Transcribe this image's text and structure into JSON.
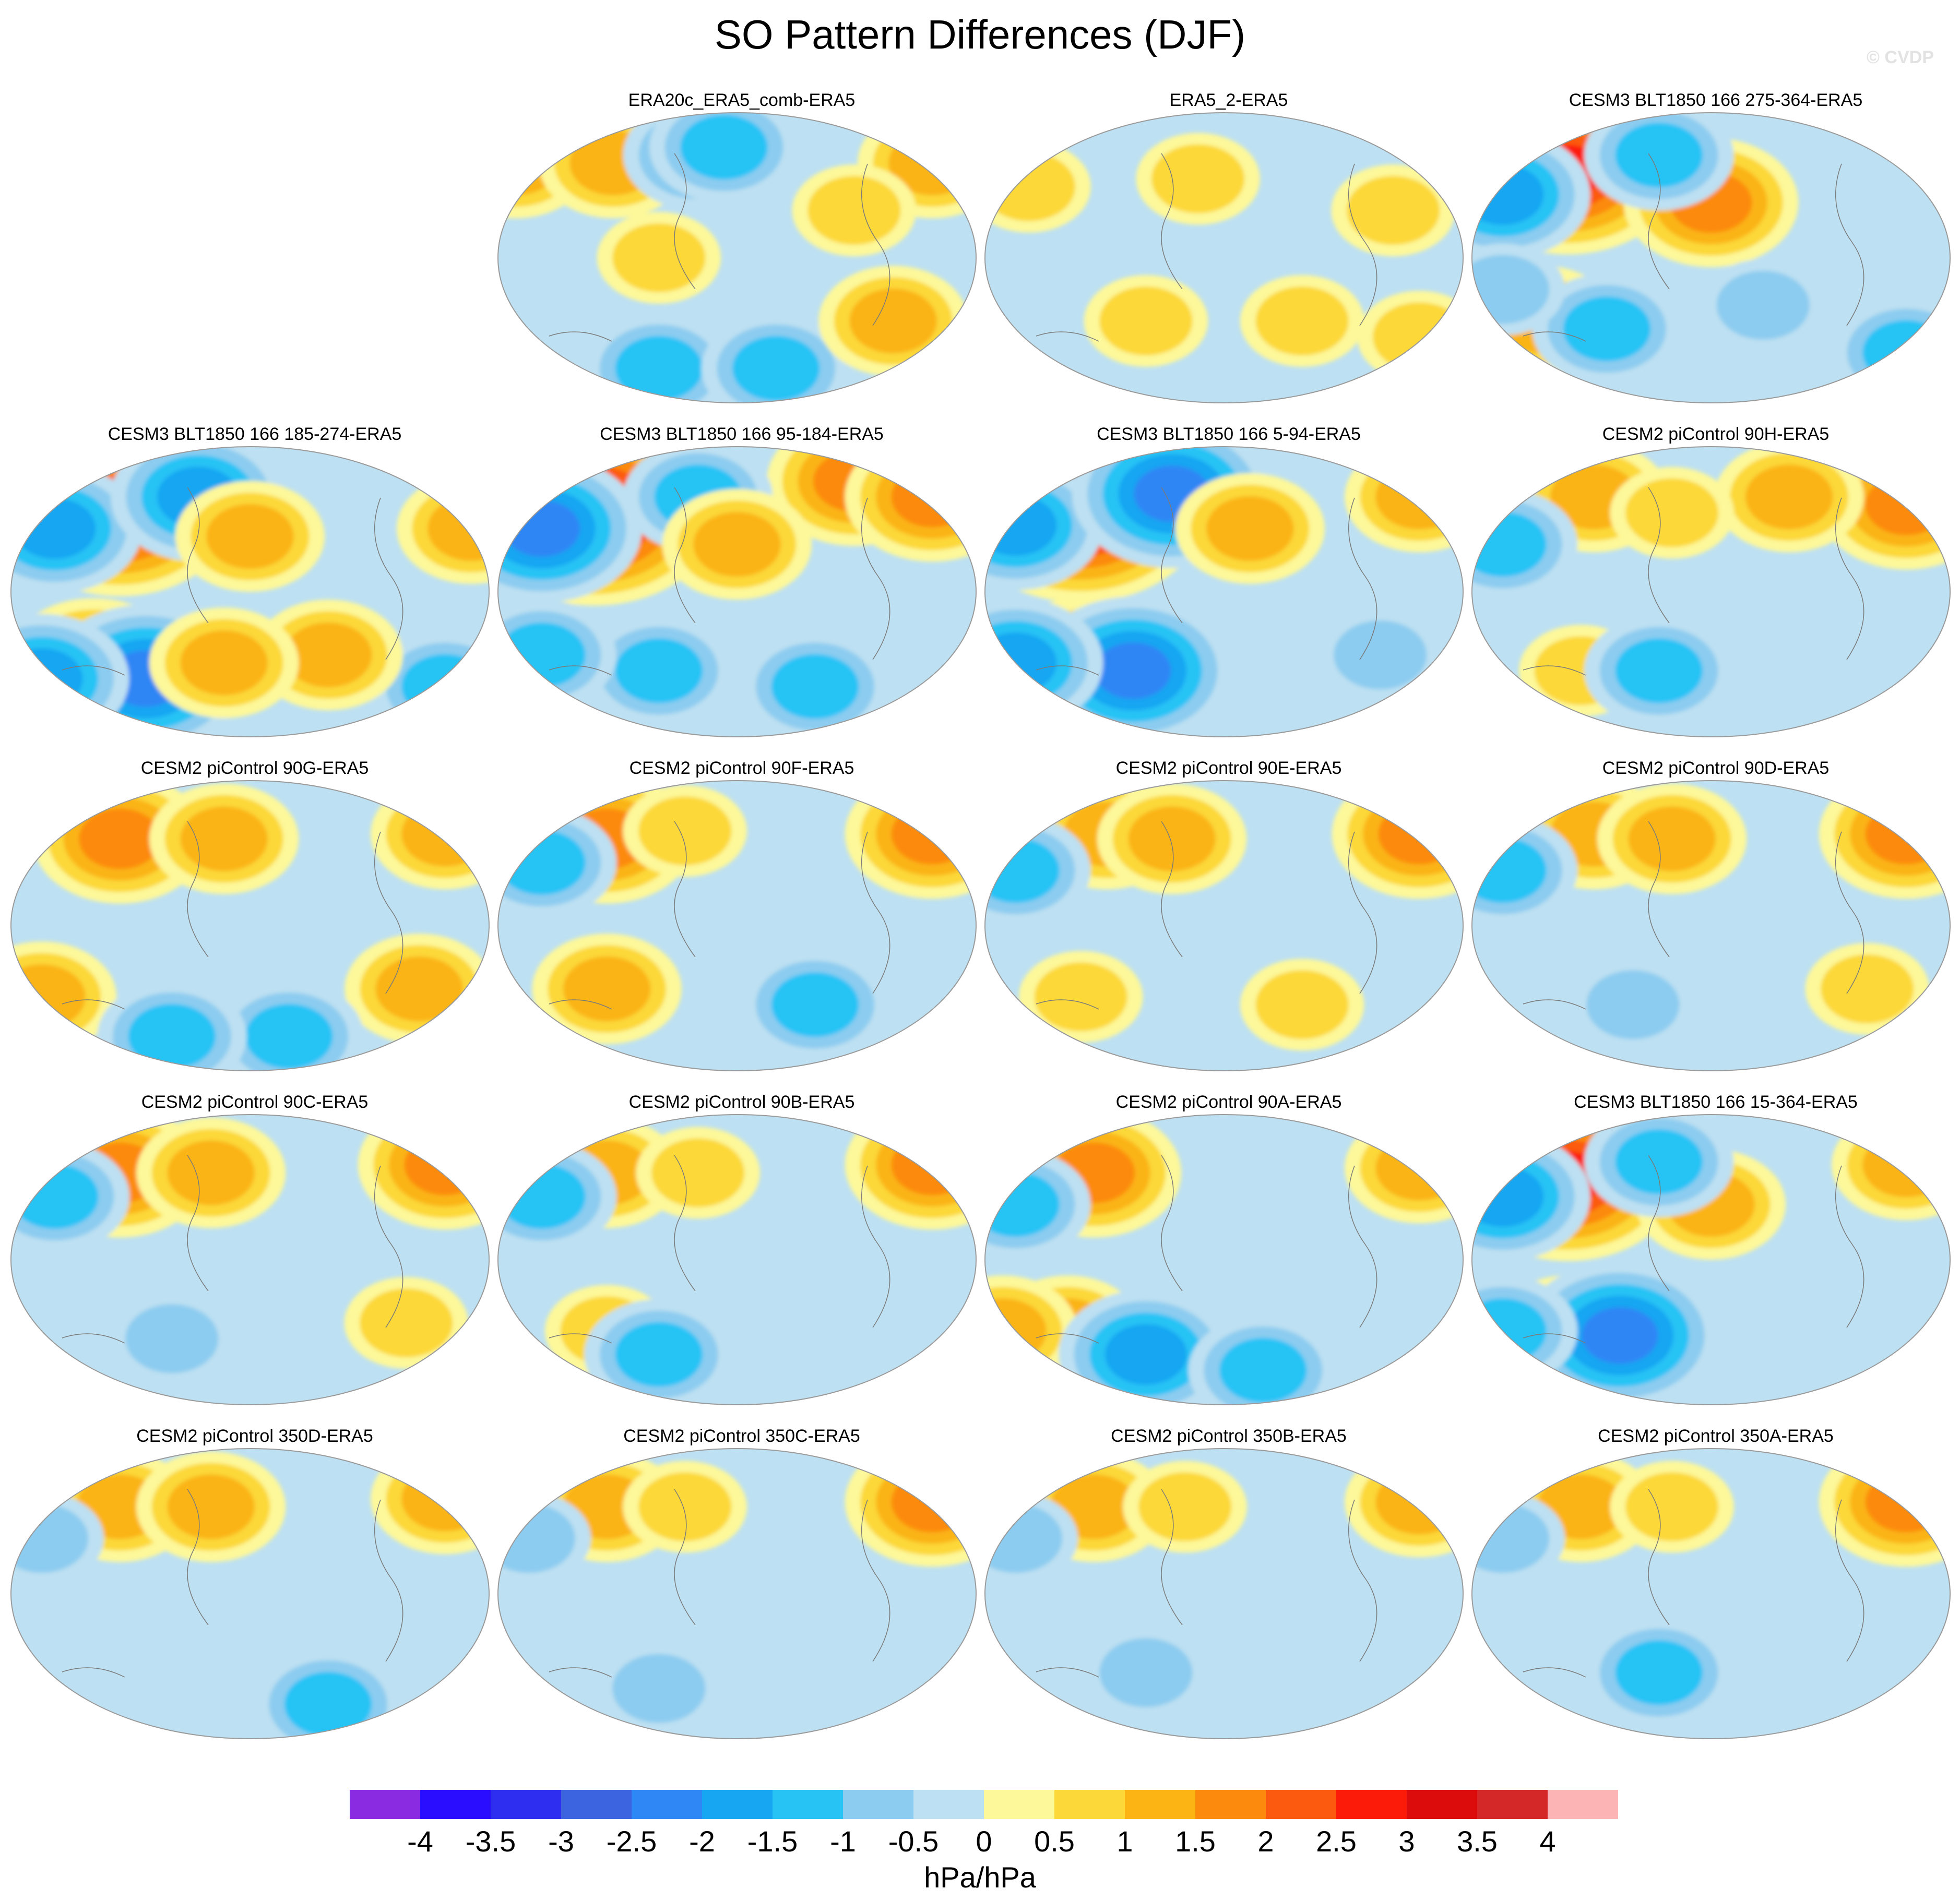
{
  "title": "SO Pattern Differences (DJF)",
  "watermark": "© CVDP",
  "chart_data": {
    "type": "heatmap",
    "projection": "global map (Robinson-like ellipse)",
    "panels": [
      {
        "row": 0,
        "col": 1,
        "title": "ERA20c_ERA5_comb-ERA5",
        "features": [
          {
            "lon": -170,
            "lat": 60,
            "level": 1
          },
          {
            "lon": 150,
            "lat": 60,
            "level": 1
          },
          {
            "lon": -95,
            "lat": 60,
            "level": 1
          },
          {
            "lon": -30,
            "lat": 65,
            "level": -1
          },
          {
            "lon": -10,
            "lat": 70,
            "level": -1
          },
          {
            "lon": -60,
            "lat": -70,
            "level": -1
          },
          {
            "lon": 30,
            "lat": -70,
            "level": -1
          },
          {
            "lon": 120,
            "lat": -40,
            "level": 1
          },
          {
            "lon": 90,
            "lat": 30,
            "level": 0.5
          },
          {
            "lon": -60,
            "lat": 0,
            "level": 0.5
          }
        ]
      },
      {
        "row": 0,
        "col": 2,
        "title": "ERA5_2-ERA5",
        "features": [
          {
            "lon": -150,
            "lat": 45,
            "level": 0.5
          },
          {
            "lon": -20,
            "lat": 50,
            "level": 0.5
          },
          {
            "lon": 130,
            "lat": 30,
            "level": 0.5
          },
          {
            "lon": 60,
            "lat": -40,
            "level": 0.5
          },
          {
            "lon": -60,
            "lat": -40,
            "level": 0.5
          },
          {
            "lon": 150,
            "lat": -50,
            "level": 0.5
          }
        ]
      },
      {
        "row": 0,
        "col": 3,
        "title": "CESM3 BLT1850 166 275-364-ERA5",
        "features": [
          {
            "lon": -110,
            "lat": 55,
            "level": 2.5
          },
          {
            "lon": -160,
            "lat": 40,
            "level": -1.5
          },
          {
            "lon": 0,
            "lat": 35,
            "level": 1.5
          },
          {
            "lon": -40,
            "lat": 65,
            "level": -1
          },
          {
            "lon": -130,
            "lat": -40,
            "level": 1
          },
          {
            "lon": -80,
            "lat": -45,
            "level": -1
          },
          {
            "lon": 150,
            "lat": -60,
            "level": -1
          },
          {
            "lon": -160,
            "lat": -20,
            "level": -0.5
          },
          {
            "lon": 40,
            "lat": -30,
            "level": -0.5
          }
        ]
      },
      {
        "row": 1,
        "col": 0,
        "title": "CESM3 BLT1850 166 185-274-ERA5",
        "features": [
          {
            "lon": -100,
            "lat": 50,
            "level": 2.5
          },
          {
            "lon": -150,
            "lat": 40,
            "level": -1.5
          },
          {
            "lon": -40,
            "lat": 60,
            "level": -1.5
          },
          {
            "lon": 0,
            "lat": 35,
            "level": 1
          },
          {
            "lon": -120,
            "lat": -45,
            "level": 1.5
          },
          {
            "lon": -80,
            "lat": -55,
            "level": -2
          },
          {
            "lon": -160,
            "lat": -55,
            "level": -1.5
          },
          {
            "lon": 150,
            "lat": -60,
            "level": -1
          },
          {
            "lon": 60,
            "lat": -40,
            "level": 1
          },
          {
            "lon": -20,
            "lat": -45,
            "level": 1
          },
          {
            "lon": 170,
            "lat": 40,
            "level": 1
          }
        ]
      },
      {
        "row": 1,
        "col": 1,
        "title": "CESM3 BLT1850 166 95-184-ERA5",
        "features": [
          {
            "lon": -110,
            "lat": 50,
            "level": 3
          },
          {
            "lon": -150,
            "lat": 40,
            "level": -2
          },
          {
            "lon": 90,
            "lat": 70,
            "level": 1.5
          },
          {
            "lon": 150,
            "lat": 60,
            "level": 1.5
          },
          {
            "lon": -30,
            "lat": 60,
            "level": -1
          },
          {
            "lon": 0,
            "lat": 30,
            "level": 1
          },
          {
            "lon": -60,
            "lat": -50,
            "level": -1
          },
          {
            "lon": -150,
            "lat": -40,
            "level": -1
          },
          {
            "lon": 60,
            "lat": -60,
            "level": -1
          }
        ]
      },
      {
        "row": 1,
        "col": 2,
        "title": "CESM3 BLT1850 166 5-94-ERA5",
        "features": [
          {
            "lon": -110,
            "lat": 52,
            "level": 3
          },
          {
            "lon": -160,
            "lat": 42,
            "level": -1.5
          },
          {
            "lon": -40,
            "lat": 62,
            "level": -2
          },
          {
            "lon": 20,
            "lat": 40,
            "level": 1
          },
          {
            "lon": 150,
            "lat": 60,
            "level": 1
          },
          {
            "lon": -110,
            "lat": -45,
            "level": 1.5
          },
          {
            "lon": -70,
            "lat": -50,
            "level": -2
          },
          {
            "lon": -160,
            "lat": -45,
            "level": -1.5
          },
          {
            "lon": 120,
            "lat": -40,
            "level": -0.5
          }
        ]
      },
      {
        "row": 1,
        "col": 3,
        "title": "CESM2 piControl 90H-ERA5",
        "features": [
          {
            "lon": 150,
            "lat": 55,
            "level": 1.5
          },
          {
            "lon": -90,
            "lat": 60,
            "level": 1
          },
          {
            "lon": 60,
            "lat": 60,
            "level": 1
          },
          {
            "lon": -160,
            "lat": 30,
            "level": -1
          },
          {
            "lon": -30,
            "lat": 50,
            "level": 0.5
          },
          {
            "lon": -100,
            "lat": -50,
            "level": 0.5
          },
          {
            "lon": -40,
            "lat": -50,
            "level": -1
          }
        ]
      },
      {
        "row": 2,
        "col": 0,
        "title": "CESM2 piControl 90G-ERA5",
        "features": [
          {
            "lon": 150,
            "lat": 58,
            "level": 1
          },
          {
            "lon": -100,
            "lat": 55,
            "level": 1.5
          },
          {
            "lon": -20,
            "lat": 55,
            "level": 1
          },
          {
            "lon": -160,
            "lat": -45,
            "level": 1
          },
          {
            "lon": 130,
            "lat": -40,
            "level": 1
          },
          {
            "lon": 30,
            "lat": -70,
            "level": -1
          },
          {
            "lon": -60,
            "lat": -70,
            "level": -1
          }
        ]
      },
      {
        "row": 2,
        "col": 1,
        "title": "CESM2 piControl 90F-ERA5",
        "features": [
          {
            "lon": 150,
            "lat": 58,
            "level": 1.5
          },
          {
            "lon": -100,
            "lat": 55,
            "level": 1.5
          },
          {
            "lon": -150,
            "lat": 40,
            "level": -1
          },
          {
            "lon": -40,
            "lat": 60,
            "level": 0.5
          },
          {
            "lon": -100,
            "lat": -40,
            "level": 1
          },
          {
            "lon": 60,
            "lat": -50,
            "level": -1
          }
        ]
      },
      {
        "row": 2,
        "col": 2,
        "title": "CESM2 piControl 90E-ERA5",
        "features": [
          {
            "lon": 150,
            "lat": 58,
            "level": 1.5
          },
          {
            "lon": -90,
            "lat": 58,
            "level": 1
          },
          {
            "lon": -40,
            "lat": 55,
            "level": 1
          },
          {
            "lon": -160,
            "lat": 35,
            "level": -1
          },
          {
            "lon": -110,
            "lat": -45,
            "level": 0.5
          },
          {
            "lon": 60,
            "lat": -50,
            "level": 0.5
          }
        ]
      },
      {
        "row": 2,
        "col": 3,
        "title": "CESM2 piControl 90D-ERA5",
        "features": [
          {
            "lon": 150,
            "lat": 58,
            "level": 1.5
          },
          {
            "lon": -90,
            "lat": 58,
            "level": 1
          },
          {
            "lon": -30,
            "lat": 55,
            "level": 1
          },
          {
            "lon": -160,
            "lat": 35,
            "level": -1
          },
          {
            "lon": 120,
            "lat": -40,
            "level": 0.5
          },
          {
            "lon": -60,
            "lat": -50,
            "level": -0.5
          }
        ]
      },
      {
        "row": 3,
        "col": 0,
        "title": "CESM2 piControl 90C-ERA5",
        "features": [
          {
            "lon": 150,
            "lat": 60,
            "level": 1.5
          },
          {
            "lon": -100,
            "lat": 55,
            "level": 1.5
          },
          {
            "lon": -30,
            "lat": 55,
            "level": 1
          },
          {
            "lon": -150,
            "lat": 40,
            "level": -1
          },
          {
            "lon": 120,
            "lat": -40,
            "level": 0.5
          },
          {
            "lon": -60,
            "lat": -50,
            "level": -0.5
          }
        ]
      },
      {
        "row": 3,
        "col": 1,
        "title": "CESM2 piControl 90B-ERA5",
        "features": [
          {
            "lon": 150,
            "lat": 60,
            "level": 1.5
          },
          {
            "lon": -100,
            "lat": 55,
            "level": 1
          },
          {
            "lon": -150,
            "lat": 40,
            "level": -1
          },
          {
            "lon": -30,
            "lat": 55,
            "level": 0.5
          },
          {
            "lon": -100,
            "lat": -45,
            "level": 0.5
          },
          {
            "lon": -60,
            "lat": -60,
            "level": -1
          }
        ]
      },
      {
        "row": 3,
        "col": 2,
        "title": "CESM2 piControl 90A-ERA5",
        "features": [
          {
            "lon": 150,
            "lat": 58,
            "level": 1
          },
          {
            "lon": -100,
            "lat": 55,
            "level": 1.5
          },
          {
            "lon": -160,
            "lat": 35,
            "level": -1
          },
          {
            "lon": -120,
            "lat": -45,
            "level": 1
          },
          {
            "lon": -170,
            "lat": -45,
            "level": 1
          },
          {
            "lon": -60,
            "lat": -60,
            "level": -1.5
          },
          {
            "lon": 30,
            "lat": -70,
            "level": -1
          }
        ]
      },
      {
        "row": 3,
        "col": 3,
        "title": "CESM3 BLT1850 166 15-364-ERA5",
        "features": [
          {
            "lon": -110,
            "lat": 52,
            "level": 2.5
          },
          {
            "lon": -160,
            "lat": 40,
            "level": -1.5
          },
          {
            "lon": 0,
            "lat": 35,
            "level": 1
          },
          {
            "lon": -40,
            "lat": 62,
            "level": -1
          },
          {
            "lon": -110,
            "lat": -45,
            "level": 1
          },
          {
            "lon": -70,
            "lat": -48,
            "level": -2
          },
          {
            "lon": -160,
            "lat": -45,
            "level": -1
          },
          {
            "lon": 150,
            "lat": 60,
            "level": 1
          }
        ]
      },
      {
        "row": 4,
        "col": 0,
        "title": "CESM2 piControl 350D-ERA5",
        "features": [
          {
            "lon": 150,
            "lat": 60,
            "level": 1
          },
          {
            "lon": -100,
            "lat": 55,
            "level": 1
          },
          {
            "lon": -30,
            "lat": 55,
            "level": 1
          },
          {
            "lon": -160,
            "lat": 35,
            "level": -0.5
          },
          {
            "lon": 60,
            "lat": -70,
            "level": -1
          }
        ]
      },
      {
        "row": 4,
        "col": 1,
        "title": "CESM2 piControl 350C-ERA5",
        "features": [
          {
            "lon": 150,
            "lat": 58,
            "level": 1.5
          },
          {
            "lon": -100,
            "lat": 55,
            "level": 1
          },
          {
            "lon": -40,
            "lat": 55,
            "level": 0.5
          },
          {
            "lon": -160,
            "lat": 35,
            "level": -0.5
          },
          {
            "lon": -60,
            "lat": -60,
            "level": -0.5
          }
        ]
      },
      {
        "row": 4,
        "col": 2,
        "title": "CESM2 piControl 350B-ERA5",
        "features": [
          {
            "lon": 150,
            "lat": 58,
            "level": 1
          },
          {
            "lon": -100,
            "lat": 55,
            "level": 1
          },
          {
            "lon": -30,
            "lat": 55,
            "level": 0.5
          },
          {
            "lon": -160,
            "lat": 35,
            "level": -0.5
          },
          {
            "lon": -60,
            "lat": -50,
            "level": -0.5
          }
        ]
      },
      {
        "row": 4,
        "col": 3,
        "title": "CESM2 piControl 350A-ERA5",
        "features": [
          {
            "lon": 150,
            "lat": 58,
            "level": 1.5
          },
          {
            "lon": -100,
            "lat": 55,
            "level": 1
          },
          {
            "lon": -30,
            "lat": 55,
            "level": 0.5
          },
          {
            "lon": -160,
            "lat": 35,
            "level": -0.5
          },
          {
            "lon": -40,
            "lat": -50,
            "level": -1
          }
        ]
      }
    ],
    "colorbar": {
      "ticks": [
        "-4",
        "-3.5",
        "-3",
        "-2.5",
        "-2",
        "-1.5",
        "-1",
        "-0.5",
        "0",
        "0.5",
        "1",
        "1.5",
        "2",
        "2.5",
        "3",
        "3.5",
        "4"
      ],
      "colors": [
        "#8a2be2",
        "#2a0cff",
        "#2e2ef0",
        "#3d64e0",
        "#2f86f5",
        "#16a6f2",
        "#28c3f5",
        "#8cccf0",
        "#bde0f2",
        "#fdf89a",
        "#fcd838",
        "#fbb414",
        "#fc8a0c",
        "#fc5a0e",
        "#fc1a08",
        "#dc0c0c",
        "#d42828",
        "#fcb4b4"
      ],
      "unit": "hPa/hPa",
      "min": -4,
      "max": 4,
      "step": 0.5
    }
  }
}
